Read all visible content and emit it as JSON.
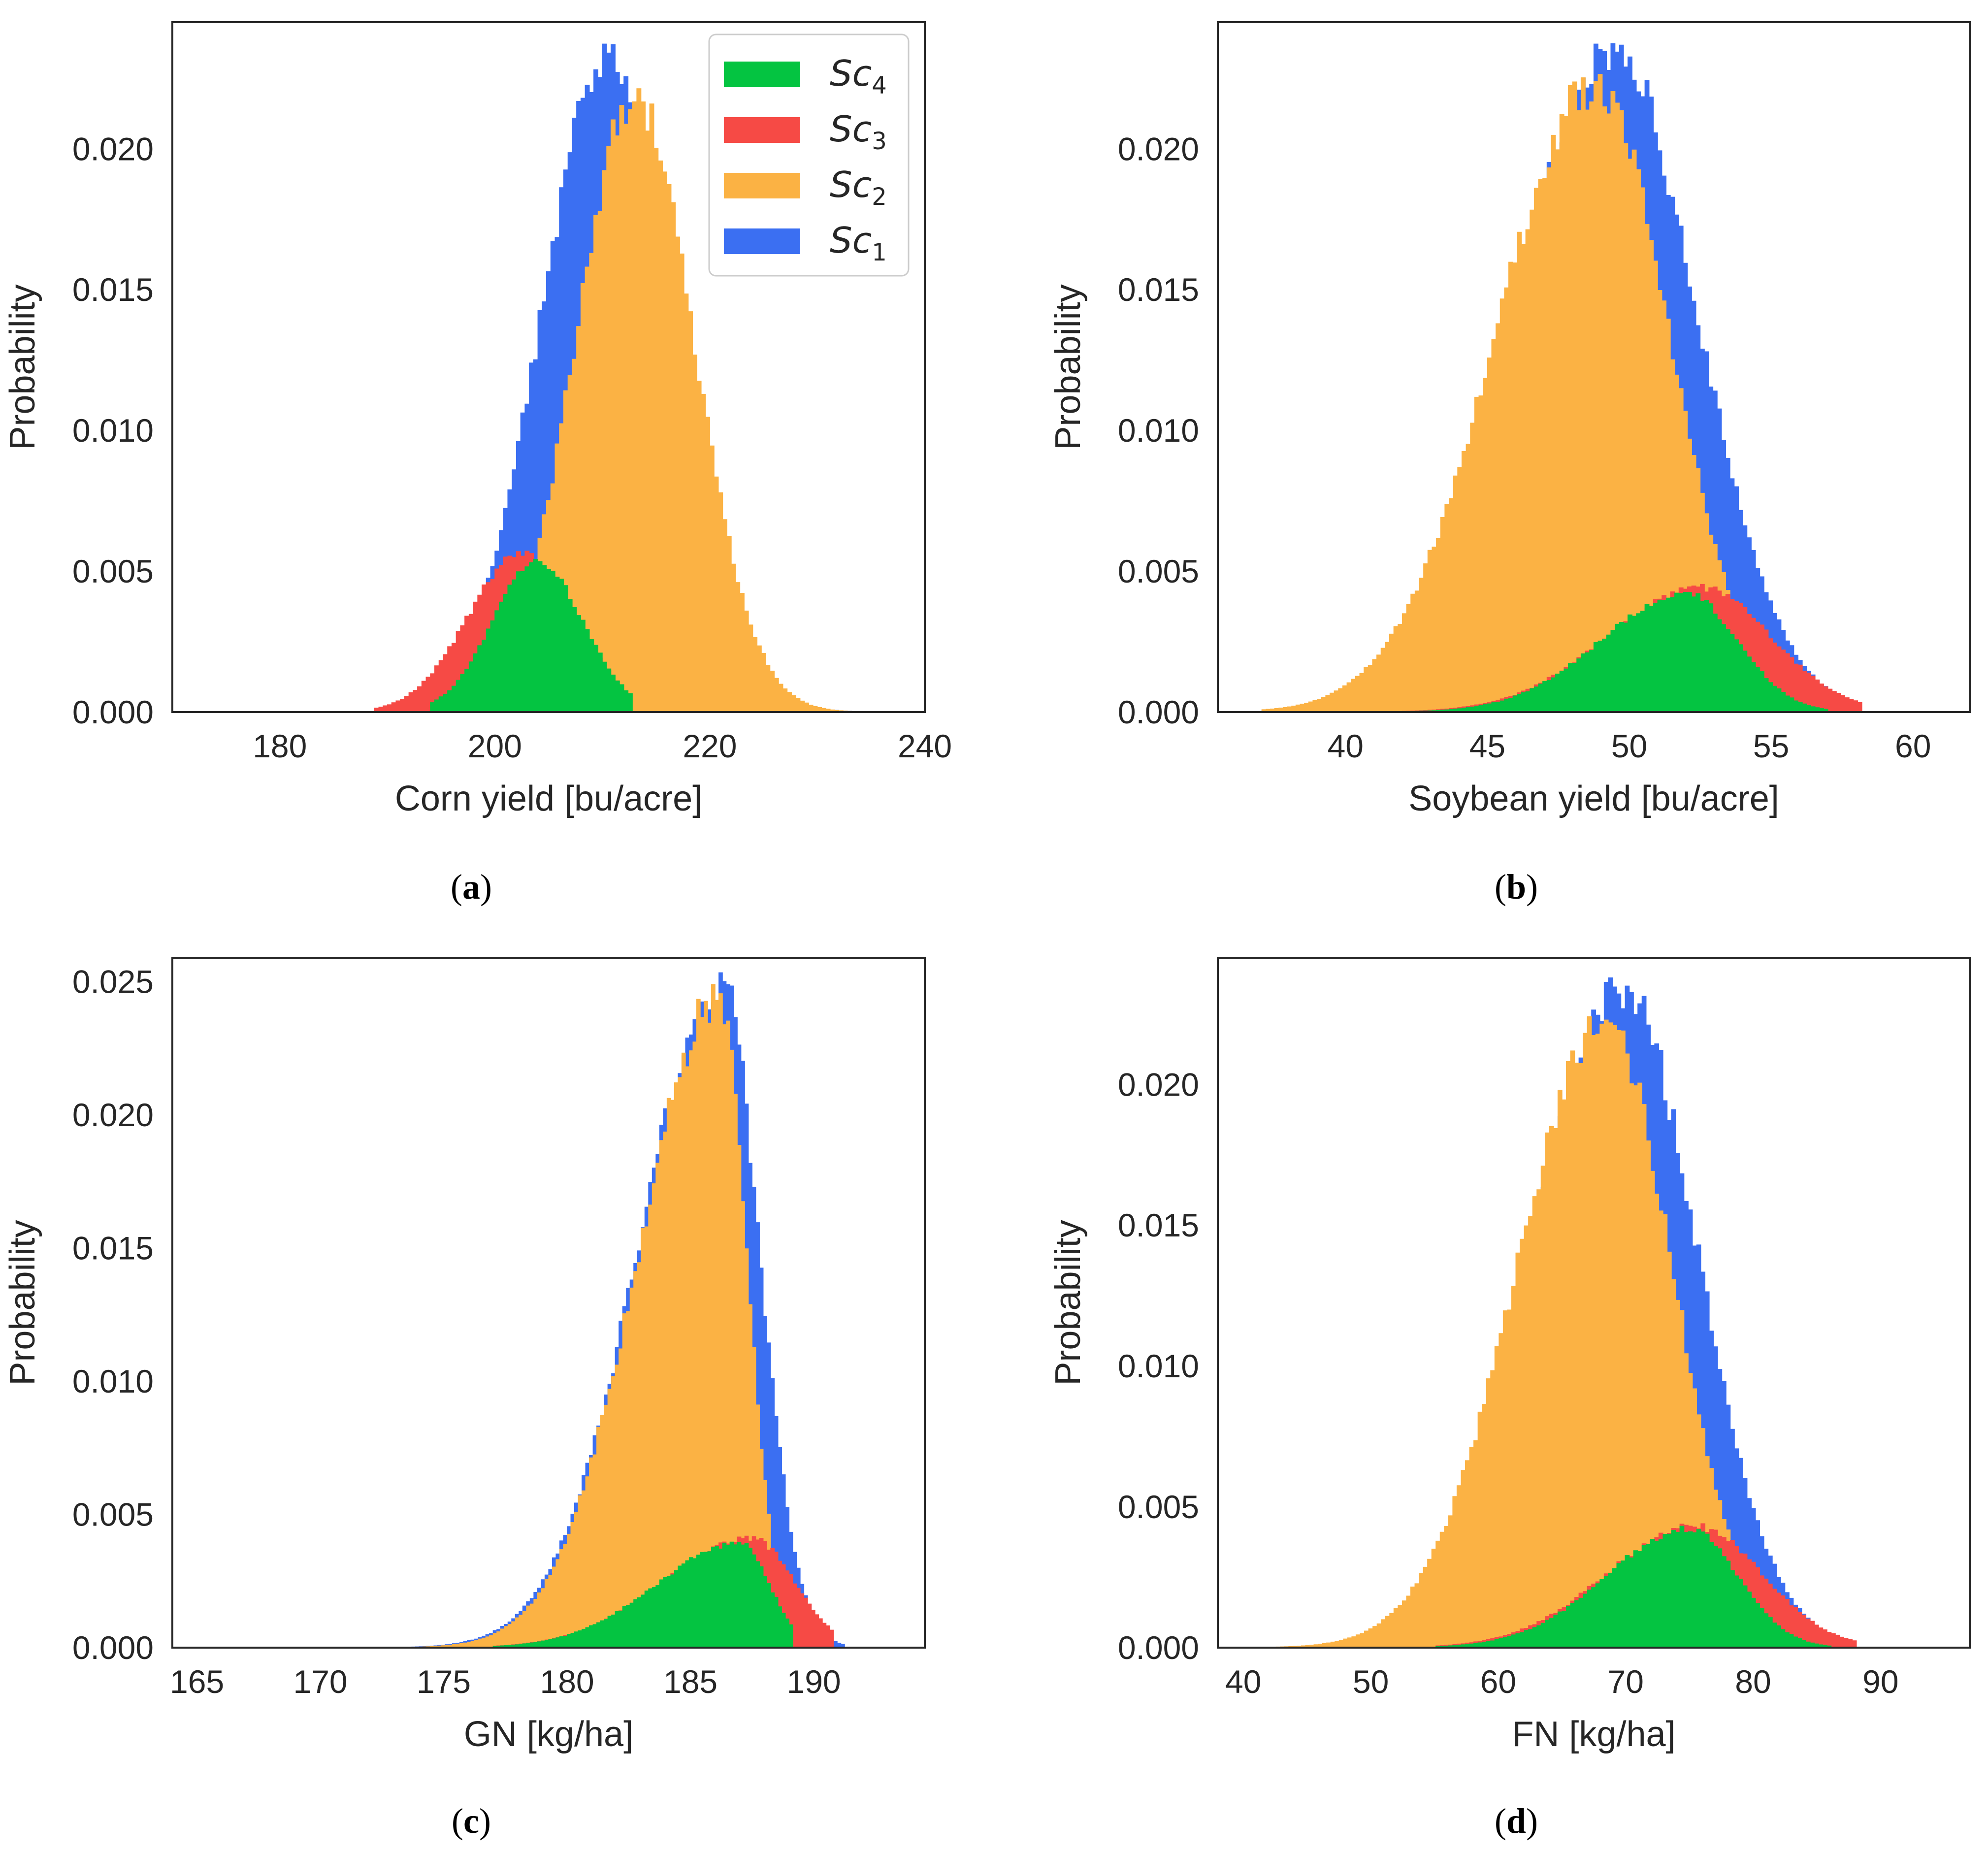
{
  "colors": {
    "sc1": "#3b6ff2",
    "sc2": "#fbb244",
    "sc3": "#f64a45",
    "sc4": "#04c441",
    "axis": "#262626"
  },
  "legend": [
    {
      "key": "sc4",
      "base": "Sc",
      "sub": "4"
    },
    {
      "key": "sc3",
      "base": "Sc",
      "sub": "3"
    },
    {
      "key": "sc2",
      "base": "Sc",
      "sub": "2"
    },
    {
      "key": "sc1",
      "base": "Sc",
      "sub": "1"
    }
  ],
  "chart_data": [
    {
      "id": "a",
      "type": "histogram",
      "caption": "a",
      "xlabel": "Corn yield [bu/acre]",
      "ylabel": "Probability",
      "xlim": [
        170,
        240
      ],
      "ylim": [
        0,
        0.0245
      ],
      "xticks": [
        "180",
        "200",
        "220",
        "240"
      ],
      "yticks": [
        "0.000",
        "0.005",
        "0.010",
        "0.015",
        "0.020"
      ],
      "legend": true,
      "bin_width": 0.4,
      "series": [
        {
          "name": "Sc1",
          "color_key": "sc1",
          "dist": "normal",
          "mean": 210.5,
          "sd": 6.2,
          "min": 189,
          "max": 236,
          "peak": 0.0232
        },
        {
          "name": "Sc2",
          "color_key": "sc2",
          "dist": "normal",
          "mean": 213.0,
          "sd": 5.5,
          "min": 195,
          "max": 236,
          "peak": 0.0218
        },
        {
          "name": "Sc3",
          "color_key": "sc3",
          "dist": "normal",
          "mean": 202.5,
          "sd": 5.0,
          "min": 189,
          "max": 212,
          "peak": 0.0056
        },
        {
          "name": "Sc4",
          "color_key": "sc4",
          "dist": "normal",
          "mean": 204.0,
          "sd": 4.2,
          "min": 194,
          "max": 213,
          "peak": 0.0053
        }
      ]
    },
    {
      "id": "b",
      "type": "histogram",
      "caption": "b",
      "xlabel": "Soybean yield [bu/acre]",
      "ylabel": "Probability",
      "xlim": [
        35.5,
        62
      ],
      "ylim": [
        0,
        0.0245
      ],
      "xticks": [
        "40",
        "45",
        "50",
        "55",
        "60"
      ],
      "yticks": [
        "0.000",
        "0.005",
        "0.010",
        "0.015",
        "0.020"
      ],
      "legend": false,
      "bin_width": 0.15,
      "series": [
        {
          "name": "Sc1",
          "color_key": "sc1",
          "dist": "skewleft",
          "mean": 49.5,
          "sdl": 3.6,
          "sdr": 2.9,
          "min": 37,
          "max": 58,
          "peak": 0.0234
        },
        {
          "name": "Sc2",
          "color_key": "sc2",
          "dist": "skewleft",
          "mean": 48.8,
          "sdl": 3.5,
          "sdr": 2.6,
          "min": 37,
          "max": 56,
          "peak": 0.0222
        },
        {
          "name": "Sc3",
          "color_key": "sc3",
          "dist": "skewleft",
          "mean": 52.5,
          "sdl": 3.3,
          "sdr": 2.5,
          "min": 42,
          "max": 58.2,
          "peak": 0.0044
        },
        {
          "name": "Sc4",
          "color_key": "sc4",
          "dist": "skewleft",
          "mean": 52.0,
          "sdl": 3.0,
          "sdr": 1.8,
          "min": 42,
          "max": 57,
          "peak": 0.0042
        }
      ]
    },
    {
      "id": "c",
      "type": "histogram",
      "caption": "c",
      "xlabel": "GN [kg/ha]",
      "ylabel": "Probability",
      "xlim": [
        164,
        194.5
      ],
      "ylim": [
        0,
        0.0259
      ],
      "xticks": [
        "165",
        "170",
        "175",
        "180",
        "185",
        "190"
      ],
      "yticks": [
        "0.000",
        "0.005",
        "0.010",
        "0.015",
        "0.020",
        "0.025"
      ],
      "legend": false,
      "bin_width": 0.15,
      "series": [
        {
          "name": "Sc1",
          "color_key": "sc1",
          "dist": "skewleft",
          "mean": 186.3,
          "sdl": 3.4,
          "sdr": 1.5,
          "min": 171,
          "max": 191.3,
          "peak": 0.0248
        },
        {
          "name": "Sc2",
          "color_key": "sc2",
          "dist": "skewleft",
          "mean": 186.2,
          "sdl": 3.3,
          "sdr": 1.1,
          "min": 171,
          "max": 188.5,
          "peak": 0.0244
        },
        {
          "name": "Sc3",
          "color_key": "sc3",
          "dist": "skewleft",
          "mean": 187.5,
          "sdl": 3.6,
          "sdr": 1.7,
          "min": 177,
          "max": 190.8,
          "peak": 0.0041
        },
        {
          "name": "Sc4",
          "color_key": "sc4",
          "dist": "skewleft",
          "mean": 187.0,
          "sdl": 3.4,
          "sdr": 1.2,
          "min": 177,
          "max": 189.2,
          "peak": 0.0039
        }
      ]
    },
    {
      "id": "d",
      "type": "histogram",
      "caption": "d",
      "xlabel": "FN [kg/ha]",
      "ylabel": "Probability",
      "xlim": [
        38,
        97
      ],
      "ylim": [
        0,
        0.0245
      ],
      "xticks": [
        "40",
        "50",
        "60",
        "70",
        "80",
        "90"
      ],
      "yticks": [
        "0.000",
        "0.005",
        "0.010",
        "0.015",
        "0.020"
      ],
      "legend": false,
      "bin_width": 0.33,
      "series": [
        {
          "name": "Sc1",
          "color_key": "sc1",
          "dist": "skewleft",
          "mean": 69.8,
          "sdl": 7.2,
          "sdr": 5.8,
          "min": 41,
          "max": 88,
          "peak": 0.0234
        },
        {
          "name": "Sc2",
          "color_key": "sc2",
          "dist": "skewleft",
          "mean": 68.5,
          "sdl": 7.0,
          "sdr": 5.2,
          "min": 41,
          "max": 85,
          "peak": 0.0222
        },
        {
          "name": "Sc3",
          "color_key": "sc3",
          "dist": "skewleft",
          "mean": 75.5,
          "sdl": 7.0,
          "sdr": 5.2,
          "min": 55,
          "max": 88.2,
          "peak": 0.0043
        },
        {
          "name": "Sc4",
          "color_key": "sc4",
          "dist": "skewleft",
          "mean": 75.0,
          "sdl": 6.5,
          "sdr": 3.8,
          "min": 55,
          "max": 86,
          "peak": 0.0042
        }
      ]
    }
  ]
}
